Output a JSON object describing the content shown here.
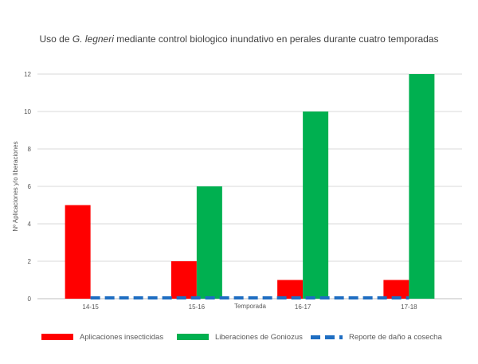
{
  "chart_data": {
    "type": "bar",
    "title_parts": {
      "prefix": "Uso de ",
      "italic": "G. legneri",
      "suffix": " mediante control biologico inundativo en perales durante cuatro temporadas"
    },
    "xlabel": "Temporada",
    "ylabel": "Nº Aplicaciones y/o liberaciones",
    "categories": [
      "14-15",
      "15-16",
      "16-17",
      "17-18"
    ],
    "ylim": [
      0,
      12
    ],
    "yticks": [
      0,
      2,
      4,
      6,
      8,
      10,
      12
    ],
    "grid": true,
    "legend_position": "bottom",
    "series": [
      {
        "name": "Aplicaciones insecticidas",
        "type": "bar",
        "color": "#ff0000",
        "values": [
          5,
          2,
          1,
          1
        ]
      },
      {
        "name": "Liberaciones de Goniozus",
        "type": "bar",
        "color": "#00b050",
        "values": [
          0,
          6,
          10,
          12
        ]
      },
      {
        "name": "Reporte de daño a cosecha",
        "type": "line",
        "style": "dashed",
        "color": "#1f6ec2",
        "values": [
          0,
          0,
          0,
          0
        ]
      }
    ]
  }
}
